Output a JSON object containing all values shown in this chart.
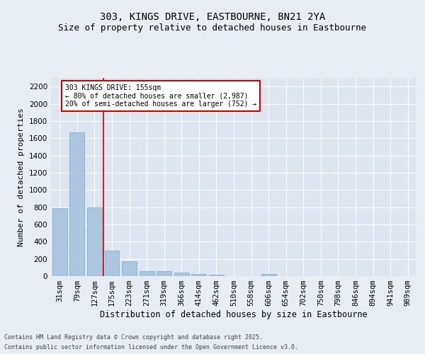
{
  "title_line1": "303, KINGS DRIVE, EASTBOURNE, BN21 2YA",
  "title_line2": "Size of property relative to detached houses in Eastbourne",
  "xlabel": "Distribution of detached houses by size in Eastbourne",
  "ylabel": "Number of detached properties",
  "categories": [
    "31sqm",
    "79sqm",
    "127sqm",
    "175sqm",
    "223sqm",
    "271sqm",
    "319sqm",
    "366sqm",
    "414sqm",
    "462sqm",
    "510sqm",
    "558sqm",
    "606sqm",
    "654sqm",
    "702sqm",
    "750sqm",
    "798sqm",
    "846sqm",
    "894sqm",
    "941sqm",
    "989sqm"
  ],
  "values": [
    790,
    1670,
    800,
    295,
    170,
    60,
    55,
    45,
    25,
    15,
    0,
    0,
    25,
    0,
    0,
    0,
    0,
    0,
    0,
    0,
    0
  ],
  "bar_color": "#adc6df",
  "bar_edge_color": "#7aaac8",
  "annotation_text_line1": "303 KINGS DRIVE: 155sqm",
  "annotation_text_line2": "← 80% of detached houses are smaller (2,987)",
  "annotation_text_line3": "20% of semi-detached houses are larger (752) →",
  "vline_x_index": 2.5,
  "vline_color": "#cc0000",
  "ylim": [
    0,
    2300
  ],
  "yticks": [
    0,
    200,
    400,
    600,
    800,
    1000,
    1200,
    1400,
    1600,
    1800,
    2000,
    2200
  ],
  "bg_color": "#e8edf4",
  "plot_bg_color": "#dce5f0",
  "grid_color": "#ffffff",
  "footer_line1": "Contains HM Land Registry data © Crown copyright and database right 2025.",
  "footer_line2": "Contains public sector information licensed under the Open Government Licence v3.0.",
  "title_fontsize": 10,
  "subtitle_fontsize": 9,
  "tick_fontsize": 7.5,
  "ylabel_fontsize": 8,
  "xlabel_fontsize": 8.5,
  "annot_fontsize": 7
}
